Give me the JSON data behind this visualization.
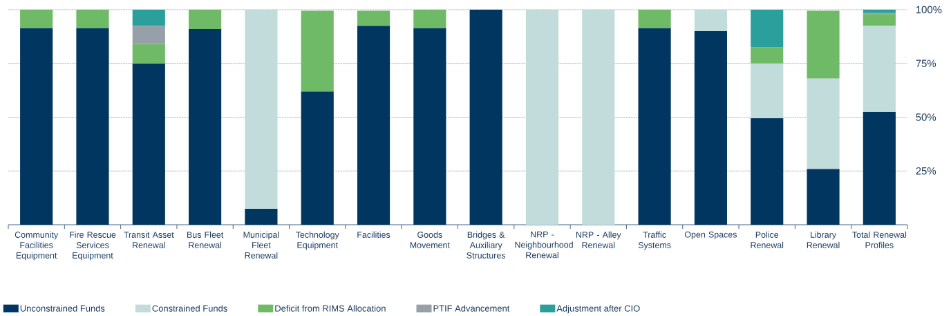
{
  "chart_data": {
    "type": "bar",
    "stacked": true,
    "categories": [
      "Community Facilities Equipment",
      "Fire Rescue Services Equipment",
      "Transit Asset Renewal",
      "Bus Fleet Renewal",
      "Municipal Fleet Renewal",
      "Technology Equipment",
      "Facilities",
      "Goods Movement",
      "Bridges & Auxiliary Structures",
      "NRP - Neighbourhood Renewal",
      "NRP - Alley Renewal",
      "Traffic Systems",
      "Open Spaces",
      "Police Renewal",
      "Library Renewal",
      "Total Renewal Profiles"
    ],
    "series": [
      {
        "name": "Unconstrained Funds",
        "color": "#003660",
        "values": [
          91.5,
          91.5,
          75,
          91,
          7.5,
          62,
          92.5,
          91.5,
          100,
          null,
          null,
          91.5,
          90,
          49.5,
          26,
          52.5
        ]
      },
      {
        "name": "Constrained Funds",
        "color": "#c2dcdc",
        "values": [
          null,
          null,
          null,
          null,
          92.5,
          null,
          null,
          null,
          null,
          100,
          100,
          null,
          10,
          25.5,
          42,
          40
        ]
      },
      {
        "name": "Deficit from RIMS Allocation",
        "color": "#6fba67",
        "values": [
          8.5,
          8.5,
          9,
          9,
          null,
          37.5,
          7,
          8.5,
          null,
          null,
          null,
          8.5,
          null,
          7.5,
          31.5,
          5.5
        ]
      },
      {
        "name": "PTIF Advancement",
        "color": "#97a0a8",
        "values": [
          null,
          null,
          8.5,
          null,
          null,
          null,
          null,
          null,
          null,
          null,
          null,
          null,
          null,
          null,
          null,
          0.5
        ]
      },
      {
        "name": "Adjustment after CIO",
        "color": "#2a9f9c",
        "values": [
          null,
          null,
          7.5,
          null,
          null,
          null,
          null,
          null,
          null,
          null,
          null,
          null,
          null,
          17.5,
          null,
          1.5
        ]
      }
    ],
    "ylim": [
      0,
      100
    ],
    "yticks": [
      {
        "value": 25,
        "label": "25%"
      },
      {
        "value": 50,
        "label": "50%"
      },
      {
        "value": 75,
        "label": "75%"
      },
      {
        "value": 100,
        "label": "100%"
      }
    ],
    "grid": "y",
    "legend": "bottom"
  }
}
